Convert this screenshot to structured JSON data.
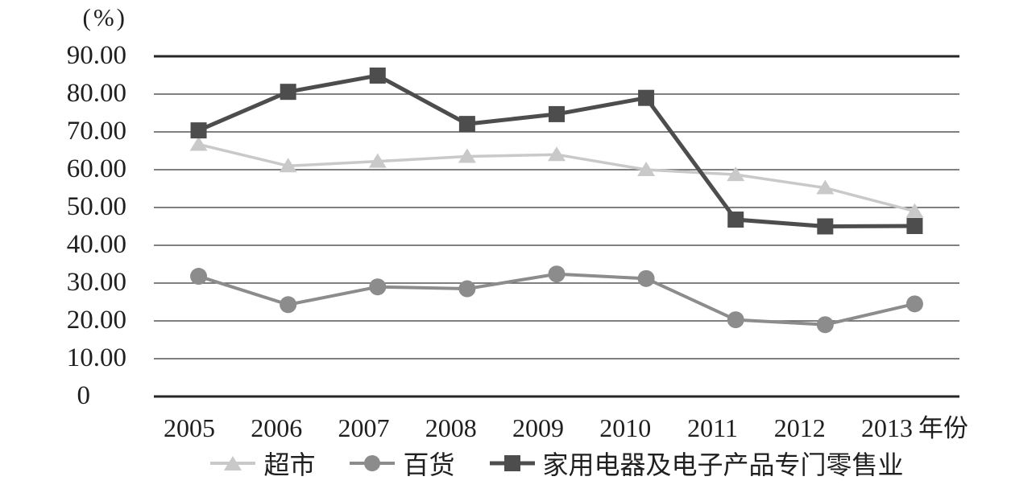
{
  "chart_data": {
    "type": "line",
    "title": "",
    "unit_label": "(%)",
    "xlabel": "年份",
    "categories": [
      "2005",
      "2006",
      "2007",
      "2008",
      "2009",
      "2010",
      "2011",
      "2012",
      "2013"
    ],
    "ylim": [
      0,
      90
    ],
    "grid": "horizontal",
    "legend_position": "bottom",
    "y_ticks": [
      {
        "value": 90,
        "label": "90.00"
      },
      {
        "value": 80,
        "label": "80.00"
      },
      {
        "value": 70,
        "label": "70.00"
      },
      {
        "value": 60,
        "label": "60.00"
      },
      {
        "value": 50,
        "label": "50.00"
      },
      {
        "value": 40,
        "label": "40.00"
      },
      {
        "value": 30,
        "label": "30.00"
      },
      {
        "value": 20,
        "label": "20.00"
      },
      {
        "value": 10,
        "label": "10.00"
      },
      {
        "value": 0,
        "label": "0"
      }
    ],
    "series": [
      {
        "name": "超市",
        "marker": "triangle",
        "color": "#c9c9c9",
        "values": [
          66.7,
          61.0,
          62.2,
          63.5,
          64.0,
          60.0,
          58.7,
          55.2,
          49.0
        ]
      },
      {
        "name": "百货",
        "marker": "circle",
        "color": "#8c8c8c",
        "values": [
          31.8,
          24.3,
          29.0,
          28.5,
          32.4,
          31.2,
          20.3,
          19.0,
          24.5
        ]
      },
      {
        "name": "家用电器及电子产品专门零售业",
        "marker": "square",
        "color": "#4d4d4d",
        "values": [
          70.4,
          80.6,
          84.9,
          72.1,
          74.7,
          79.0,
          46.8,
          45.0,
          45.1
        ]
      }
    ],
    "gridline_color": "#565656",
    "axis_line_color": "#262626",
    "text_color": "#1f1f1f"
  }
}
